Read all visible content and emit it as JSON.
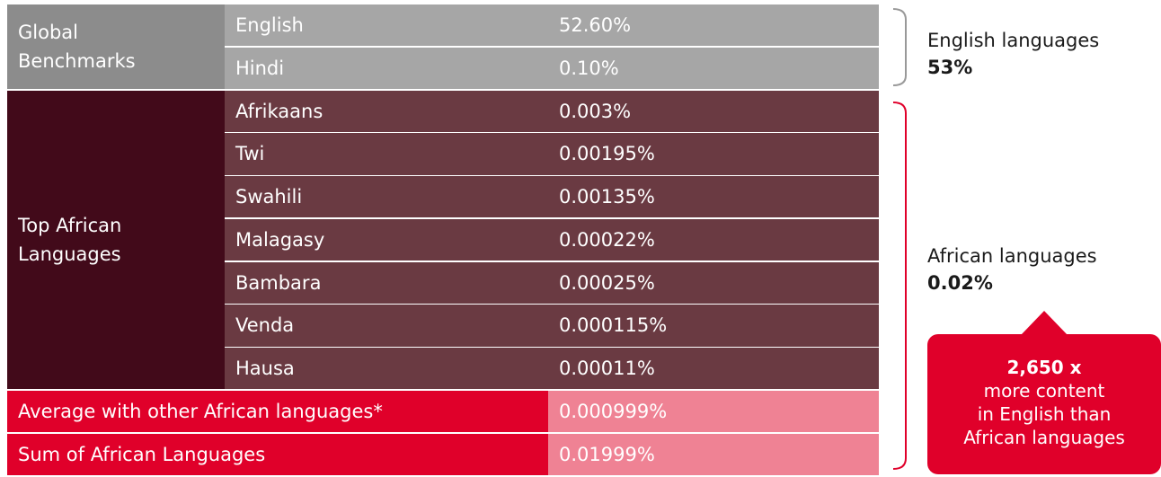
{
  "table": {
    "groups": [
      {
        "label": "Global Benchmarks",
        "rows": [
          [
            "English",
            "52.60%"
          ],
          [
            "Hindi",
            "0.10%"
          ]
        ]
      },
      {
        "label": "Top African Languages",
        "rows": [
          [
            "Afrikaans",
            "0.003%"
          ],
          [
            "Twi",
            "0.00195%"
          ],
          [
            "Swahili",
            "0.00135%"
          ],
          [
            "Malagasy",
            "0.00022%"
          ],
          [
            "Bambara",
            "0.00025%"
          ],
          [
            "Venda",
            "0.000115%"
          ],
          [
            "Hausa",
            "0.00011%"
          ]
        ]
      }
    ],
    "summary_rows": [
      [
        "Average with other African languages*",
        "0.000999%"
      ],
      [
        "Sum of African Languages",
        "0.01999%"
      ]
    ]
  },
  "annotations": [
    {
      "label": "English languages",
      "value": "53%"
    },
    {
      "label": "African languages",
      "value": "0.02%"
    }
  ],
  "callout": {
    "headline": "2,650 x",
    "lines": [
      "more content",
      "in English than",
      "African languages"
    ]
  }
}
